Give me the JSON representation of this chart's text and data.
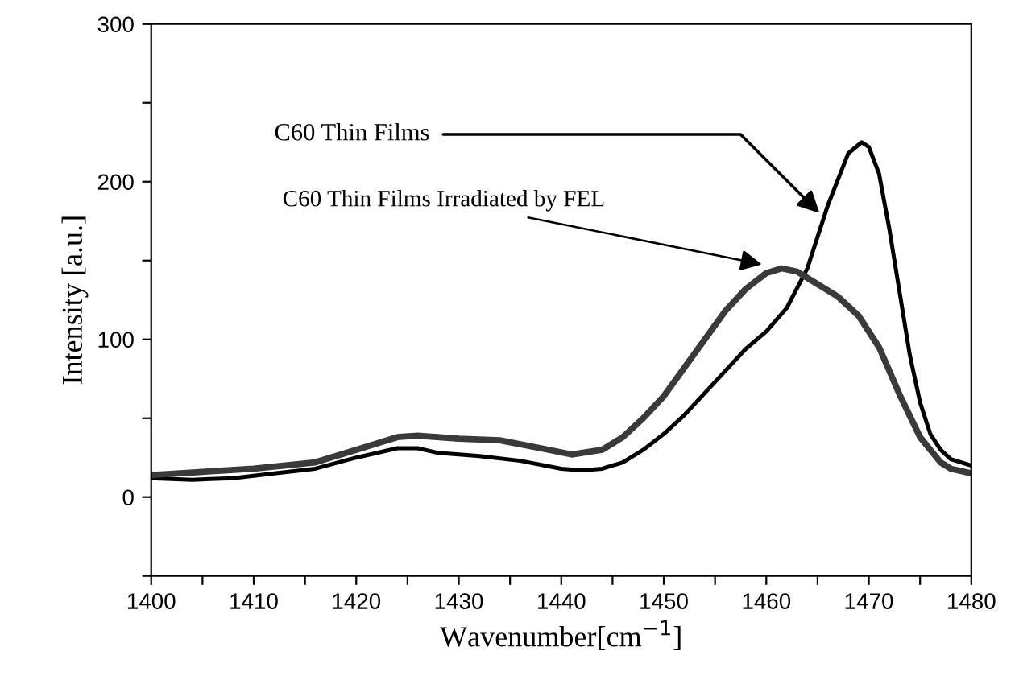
{
  "chart_data": {
    "type": "line",
    "xlabel": "Wavenumber[cm$^{−1}$]",
    "ylabel": "Intensity [a.u.]",
    "xlim": [
      1400,
      1480
    ],
    "ylim": [
      -50,
      300
    ],
    "xticks": [
      1400,
      {
        "value": 1405,
        "label": null
      },
      1410,
      {
        "value": 1415,
        "label": null
      },
      1420,
      {
        "value": 1425,
        "label": null
      },
      1430,
      {
        "value": 1435,
        "label": null
      },
      1440,
      {
        "value": 1445,
        "label": null
      },
      1450,
      {
        "value": 1455,
        "label": null
      },
      1460,
      {
        "value": 1465,
        "label": null
      },
      1470,
      {
        "value": 1475,
        "label": null
      },
      1480
    ],
    "yticks": [
      {
        "value": -50,
        "label": null
      },
      0,
      {
        "value": 50,
        "label": null
      },
      100,
      {
        "value": 150,
        "label": null
      },
      200,
      {
        "value": 250,
        "label": null
      },
      300
    ],
    "grid": false,
    "legend": false,
    "marker": "none",
    "line_style": "solid",
    "series": [
      {
        "color": "#000000",
        "x": [
          1400,
          1404,
          1408,
          1412,
          1416,
          1420,
          1424,
          1426,
          1428,
          1432,
          1436,
          1440,
          1442,
          1444,
          1446,
          1448,
          1450,
          1452,
          1454,
          1456,
          1458,
          1460,
          1462,
          1464,
          1466,
          1468,
          1469.3,
          1470,
          1471,
          1472,
          1473,
          1474,
          1475,
          1476,
          1477,
          1478,
          1480
        ],
        "values": [
          12,
          11,
          12,
          15,
          18,
          25,
          31,
          31,
          28,
          26,
          23,
          18,
          17,
          18,
          22,
          30,
          40,
          52,
          66,
          80,
          94,
          105,
          120,
          145,
          185,
          218,
          225,
          222,
          205,
          170,
          130,
          90,
          60,
          40,
          30,
          24,
          20
        ]
      },
      {
        "color": "#3a3a3a",
        "x": [
          1400,
          1405,
          1410,
          1416,
          1420,
          1424,
          1426,
          1430,
          1434,
          1438,
          1441,
          1444,
          1446,
          1448,
          1450,
          1452,
          1454,
          1456,
          1458,
          1460,
          1461.5,
          1463,
          1465,
          1467,
          1469,
          1471,
          1473,
          1475,
          1477,
          1478,
          1480
        ],
        "values": [
          14,
          16,
          18,
          22,
          30,
          38,
          39,
          37,
          36,
          31,
          27,
          30,
          38,
          50,
          64,
          82,
          100,
          118,
          132,
          142,
          145,
          143,
          135,
          127,
          115,
          95,
          65,
          38,
          22,
          18,
          15
        ]
      }
    ],
    "annotations": [
      {
        "text": "C60 Thin Films",
        "x": 1465.5,
        "y": 178
      },
      {
        "text": "C60 Thin Films Irradiated by FEL",
        "x": 1460,
        "y": 147
      }
    ]
  }
}
